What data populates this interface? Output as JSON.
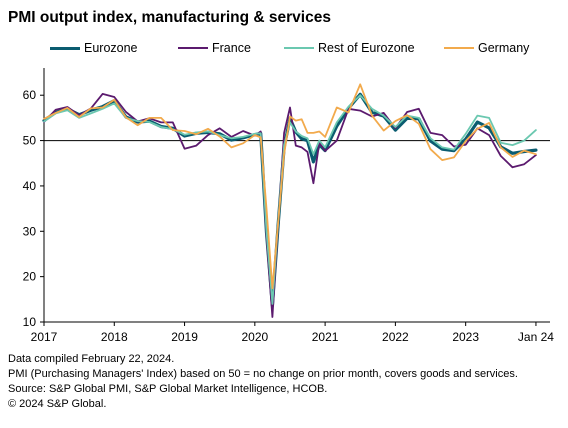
{
  "chart_data": {
    "type": "line",
    "title": "PMI output index, manufacturing & services",
    "xlabel": "",
    "ylabel": "",
    "ylim": [
      10,
      66
    ],
    "reference_line": 50,
    "yticks": [
      10,
      20,
      30,
      40,
      50,
      60
    ],
    "xticks": [
      {
        "label": "2017",
        "x": 2017.0
      },
      {
        "label": "2018",
        "x": 2018.0
      },
      {
        "label": "2019",
        "x": 2019.0
      },
      {
        "label": "2020",
        "x": 2020.0
      },
      {
        "label": "2021",
        "x": 2021.0
      },
      {
        "label": "2022",
        "x": 2022.0
      },
      {
        "label": "2023",
        "x": 2023.0
      },
      {
        "label": "Jan 24",
        "x": 2024.0
      }
    ],
    "xlim": [
      2017.0,
      2024.2
    ],
    "legend_position": "top",
    "x": [
      "2017-01",
      "2017-03",
      "2017-05",
      "2017-07",
      "2017-09",
      "2017-11",
      "2018-01",
      "2018-03",
      "2018-05",
      "2018-07",
      "2018-09",
      "2018-11",
      "2019-01",
      "2019-03",
      "2019-05",
      "2019-07",
      "2019-09",
      "2019-11",
      "2020-01",
      "2020-02",
      "2020-03",
      "2020-04",
      "2020-05",
      "2020-06",
      "2020-07",
      "2020-08",
      "2020-09",
      "2020-10",
      "2020-11",
      "2020-12",
      "2021-01",
      "2021-03",
      "2021-05",
      "2021-07",
      "2021-09",
      "2021-11",
      "2022-01",
      "2022-03",
      "2022-05",
      "2022-07",
      "2022-09",
      "2022-11",
      "2023-01",
      "2023-03",
      "2023-05",
      "2023-07",
      "2023-09",
      "2023-11",
      "2024-01"
    ],
    "series": [
      {
        "name": "Eurozone",
        "color": "#0a5c70",
        "width": 3.2,
        "values": [
          54.4,
          56.2,
          57.0,
          55.7,
          56.7,
          57.5,
          58.8,
          55.2,
          54.1,
          54.3,
          53.1,
          52.7,
          51.0,
          51.6,
          51.8,
          51.5,
          50.1,
          50.6,
          51.3,
          51.6,
          29.7,
          13.6,
          31.9,
          48.5,
          54.9,
          51.9,
          50.4,
          50.0,
          45.3,
          49.1,
          47.8,
          53.2,
          57.1,
          60.2,
          56.2,
          55.4,
          52.3,
          54.9,
          54.8,
          49.9,
          48.1,
          47.8,
          50.3,
          54.1,
          52.8,
          48.6,
          47.2,
          47.6,
          47.9
        ]
      },
      {
        "name": "France",
        "color": "#5b1a6e",
        "width": 1.8,
        "values": [
          54.1,
          56.8,
          57.4,
          55.6,
          57.1,
          60.3,
          59.6,
          56.3,
          54.2,
          54.9,
          54.0,
          54.0,
          48.2,
          48.9,
          51.2,
          52.7,
          50.8,
          52.1,
          51.1,
          52.0,
          28.9,
          11.1,
          32.1,
          51.7,
          57.3,
          48.9,
          48.5,
          47.5,
          40.6,
          49.5,
          47.7,
          50.0,
          57.0,
          56.6,
          55.3,
          56.1,
          52.7,
          56.3,
          57.0,
          51.7,
          51.2,
          48.7,
          49.1,
          52.7,
          51.2,
          46.6,
          44.1,
          44.8,
          46.8
        ]
      },
      {
        "name": "Rest of Eurozone",
        "color": "#6bc8b0",
        "width": 1.8,
        "values": [
          54.2,
          56.0,
          56.7,
          55.0,
          56.0,
          57.0,
          58.2,
          55.0,
          54.3,
          54.1,
          53.0,
          52.5,
          51.3,
          51.8,
          52.0,
          51.2,
          50.5,
          50.8,
          51.5,
          51.6,
          30.0,
          14.0,
          32.5,
          49.0,
          54.0,
          52.0,
          51.0,
          50.5,
          47.0,
          50.0,
          48.5,
          54.0,
          57.5,
          60.0,
          57.0,
          55.5,
          53.0,
          55.5,
          55.0,
          50.5,
          48.5,
          48.0,
          51.5,
          55.5,
          55.0,
          49.5,
          49.0,
          50.0,
          52.3
        ]
      },
      {
        "name": "Germany",
        "color": "#f2aa4c",
        "width": 1.8,
        "values": [
          54.8,
          56.1,
          57.2,
          55.2,
          57.1,
          57.3,
          59.0,
          55.1,
          53.4,
          55.0,
          55.0,
          52.3,
          52.1,
          51.4,
          52.6,
          50.9,
          48.5,
          49.4,
          51.2,
          50.7,
          35.0,
          17.4,
          32.3,
          47.0,
          55.3,
          54.4,
          54.7,
          51.7,
          51.7,
          52.0,
          50.8,
          57.3,
          56.2,
          62.4,
          55.5,
          52.2,
          54.3,
          55.6,
          53.7,
          48.1,
          45.7,
          46.3,
          49.9,
          52.6,
          53.9,
          48.5,
          46.4,
          47.8,
          47.0
        ]
      }
    ]
  },
  "footer": {
    "line1": "Data compiled February 22, 2024.",
    "line2": "PMI (Purchasing Managers' Index) based on 50 = no change on prior month, covers goods and services.",
    "line3": "Source: S&P Global PMI, S&P Global Market Intelligence, HCOB.",
    "line4": "© 2024 S&P Global."
  }
}
